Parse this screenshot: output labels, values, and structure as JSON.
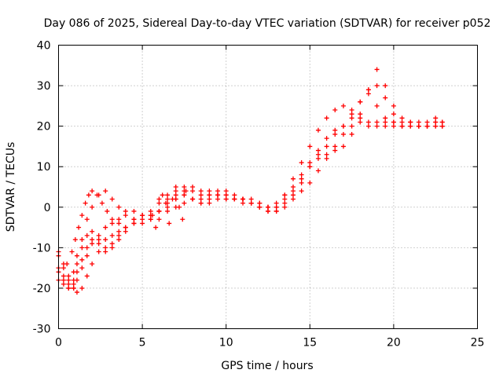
{
  "chart_data": {
    "type": "scatter",
    "title": "Day 086 of 2025, Sidereal Day-to-day VTEC variation (SDTVAR) for receiver p052",
    "xlabel": "GPS time / hours",
    "ylabel": "SDTVAR / TECUs",
    "xlim": [
      0,
      25
    ],
    "ylim": [
      -30,
      40
    ],
    "xticks": [
      "0",
      "5",
      "10",
      "15",
      "20",
      "25"
    ],
    "yticks": [
      "-30",
      "-20",
      "-10",
      "0",
      "10",
      "20",
      "30",
      "40"
    ],
    "grid": true,
    "marker": "plus",
    "color": "#ff0000",
    "series": [
      {
        "x": [
          0.0,
          0.3,
          0.6,
          0.9,
          1.1,
          1.4,
          1.7,
          2.0,
          2.4,
          2.8,
          3.2,
          3.6,
          4.0,
          4.5,
          5.0,
          5.5,
          6.0,
          6.5,
          7.0,
          7.5,
          8.0,
          8.5,
          9.0,
          9.5,
          10.0,
          10.5,
          11.0,
          11.5,
          12.0,
          12.5,
          13.0,
          13.5,
          14.0,
          14.5,
          15.0,
          15.5,
          16.0,
          16.5,
          17.0,
          17.5,
          18.0,
          18.5,
          19.0,
          19.5,
          20.0,
          20.5,
          21.0,
          21.5,
          22.0,
          22.5,
          22.9
        ],
        "y": [
          -11,
          -14,
          -17,
          -20,
          -21,
          -20,
          -17,
          -14,
          -11,
          -8,
          -7,
          -6,
          -5,
          -4,
          -2,
          -3,
          1,
          2,
          3,
          4,
          4,
          3,
          4,
          4,
          4,
          3,
          2,
          2,
          1,
          0,
          -1,
          1,
          3,
          6,
          10,
          14,
          17,
          19,
          20,
          20,
          21,
          21,
          21,
          20,
          20,
          20,
          20,
          21,
          20,
          20,
          21
        ]
      },
      {
        "x": [
          0.0,
          0.3,
          0.6,
          0.9,
          1.1,
          1.4,
          1.7,
          2.0,
          2.4,
          2.8,
          3.2,
          3.6,
          4.0,
          4.5,
          5.0,
          5.5,
          6.0,
          6.5,
          7.0,
          7.5,
          8.0,
          8.5,
          9.0,
          9.5,
          10.0,
          10.5,
          11.0,
          11.5,
          12.0,
          12.5,
          13.0,
          13.5,
          14.0,
          14.5,
          15.0,
          15.5,
          16.0,
          16.5,
          17.0,
          17.5,
          18.0,
          18.5,
          19.0,
          19.5,
          20.0,
          20.5,
          21.0,
          21.5,
          22.0,
          22.5,
          22.9
        ],
        "y": [
          -15,
          -17,
          -19,
          -20,
          -18,
          -15,
          -12,
          -9,
          -7,
          -5,
          -4,
          -3,
          -2,
          -3,
          -4,
          -2,
          -1,
          0,
          2,
          3,
          2,
          1,
          2,
          3,
          2,
          2,
          1,
          1,
          0,
          -1,
          0,
          3,
          7,
          11,
          15,
          19,
          22,
          24,
          25,
          24,
          22,
          20,
          20,
          21,
          21,
          20,
          21,
          20,
          20,
          21,
          20
        ]
      },
      {
        "x": [
          0.0,
          0.3,
          0.6,
          0.9,
          1.1,
          1.4,
          1.7,
          2.0,
          2.4,
          2.8,
          3.2,
          3.6,
          4.0,
          4.5,
          5.0,
          5.5,
          6.0,
          6.5,
          7.0,
          7.5,
          8.0,
          8.5,
          9.0,
          9.5,
          10.0,
          10.5,
          11.0,
          11.5,
          12.0,
          12.5,
          13.0,
          13.5,
          14.0,
          14.5,
          15.0,
          15.5,
          16.0,
          16.5,
          17.0,
          17.5,
          18.0,
          18.5,
          19.0,
          19.5,
          20.0,
          20.5,
          21.0,
          21.5,
          22.0,
          22.5,
          22.9
        ],
        "y": [
          -16,
          -18,
          -20,
          -19,
          -16,
          -13,
          -10,
          -8,
          -9,
          -11,
          -10,
          -8,
          -6,
          -3,
          -2,
          -1,
          2,
          3,
          4,
          5,
          5,
          4,
          3,
          3,
          3,
          2,
          2,
          1,
          1,
          0,
          -1,
          0,
          2,
          4,
          6,
          9,
          12,
          15,
          18,
          22,
          26,
          29,
          30,
          27,
          23,
          21,
          20,
          20,
          20,
          21,
          20
        ]
      },
      {
        "x": [
          0.0,
          0.3,
          0.6,
          0.9,
          1.1,
          1.4,
          1.7,
          2.0,
          2.4,
          2.8,
          3.2,
          3.6,
          4.0,
          4.5,
          5.0,
          5.5,
          6.0,
          6.5,
          7.0,
          7.5,
          8.0,
          8.5,
          9.0,
          9.5,
          10.0,
          10.5,
          11.0,
          11.5,
          12.0,
          12.5,
          13.0,
          13.5,
          14.0,
          14.5,
          15.0,
          15.5,
          16.0,
          16.5,
          17.0,
          17.5,
          18.0,
          18.5,
          19.0,
          19.5,
          20.0,
          20.5,
          21.0,
          21.5,
          22.0,
          22.5,
          22.9
        ],
        "y": [
          -18,
          -19,
          -20,
          -18,
          -14,
          -10,
          -7,
          -6,
          -8,
          -10,
          -9,
          -7,
          -5,
          -4,
          -3,
          -2,
          -3,
          -1,
          0,
          1,
          2,
          2,
          3,
          3,
          3,
          2,
          2,
          1,
          0,
          0,
          1,
          3,
          5,
          8,
          11,
          13,
          15,
          18,
          20,
          23,
          26,
          28,
          25,
          22,
          21,
          20,
          21,
          20,
          20,
          20,
          20
        ]
      },
      {
        "x": [
          0.0,
          0.3,
          0.6,
          0.9,
          1.1,
          1.4,
          1.7,
          2.0,
          2.4,
          2.8,
          3.2,
          3.6,
          4.0,
          4.5,
          5.0,
          5.5,
          6.0,
          6.5,
          7.0,
          7.5,
          8.0,
          8.5,
          9.0,
          9.5,
          10.0,
          10.5,
          11.0,
          11.5,
          12.0,
          12.5,
          13.0,
          13.5,
          14.0,
          14.5,
          15.0,
          15.5,
          16.0,
          16.5,
          17.0,
          17.5,
          18.0,
          18.5,
          19.0,
          19.5,
          20.0,
          20.5,
          21.0,
          21.5,
          22.0,
          22.5,
          22.9
        ],
        "y": [
          -12,
          -15,
          -18,
          -16,
          -12,
          -8,
          -3,
          0,
          3,
          4,
          2,
          0,
          -1,
          -1,
          -2,
          -3,
          -1,
          1,
          2,
          3,
          2,
          1,
          1,
          2,
          2,
          2,
          2,
          1,
          0,
          -1,
          0,
          2,
          4,
          7,
          10,
          12,
          13,
          14,
          15,
          18,
          23,
          29,
          34,
          30,
          25,
          22,
          21,
          20,
          21,
          22,
          21
        ]
      },
      {
        "x": [
          0.5,
          0.8,
          1.0,
          1.2,
          1.4,
          1.6,
          1.8,
          2.0,
          2.3,
          2.6,
          2.9,
          3.2,
          3.6
        ],
        "y": [
          -14,
          -11,
          -8,
          -5,
          -2,
          1,
          3,
          4,
          3,
          1,
          -1,
          -3,
          -4
        ]
      },
      {
        "x": [
          5.6,
          5.8,
          6.0,
          6.2,
          6.4,
          6.6,
          6.8,
          7.0,
          7.2,
          7.4,
          7.6
        ],
        "y": [
          -2,
          -5,
          -1,
          3,
          1,
          -4,
          2,
          5,
          0,
          -3,
          4
        ]
      }
    ]
  }
}
